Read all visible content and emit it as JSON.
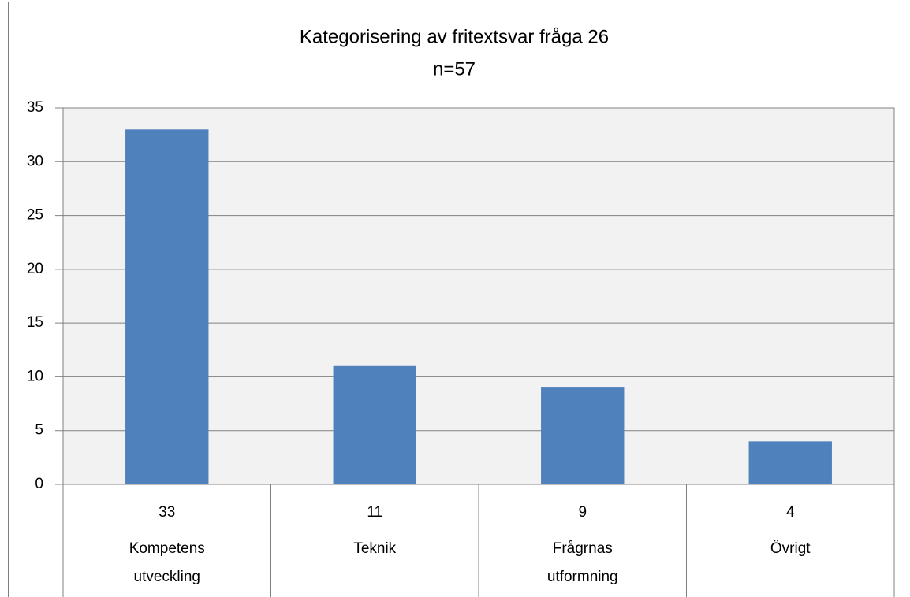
{
  "chart_data": {
    "type": "bar",
    "title": "Kategorisering av fritextsvar fråga 26",
    "subtitle": "n=57",
    "categories": [
      "Kompetens\nutveckling",
      "Teknik",
      "Frågrnas\nutformning",
      "Övrigt"
    ],
    "values": [
      33,
      11,
      9,
      4
    ],
    "color": "#4f81bd",
    "ylim": [
      0,
      35
    ],
    "yticks": [
      0,
      5,
      10,
      15,
      20,
      25,
      30,
      35
    ],
    "grid": true
  }
}
